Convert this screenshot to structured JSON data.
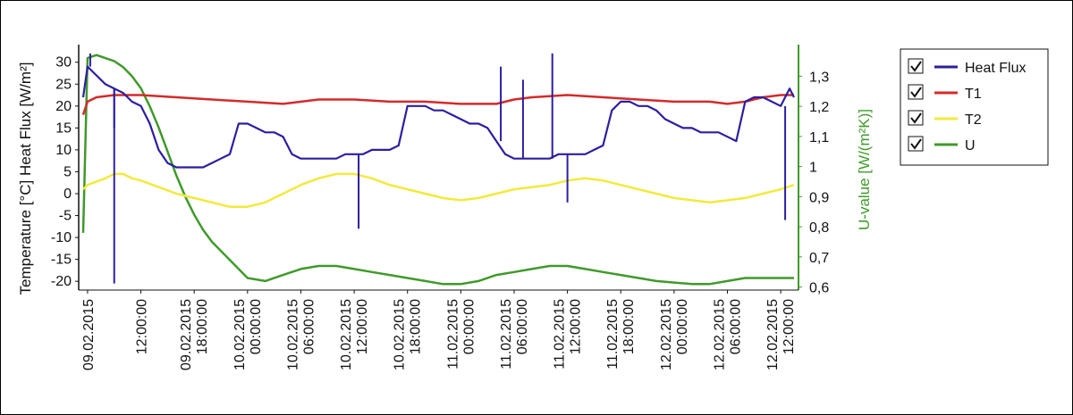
{
  "chart_data": {
    "type": "line",
    "y_left_label": "Temperature [°C] Heat Flux [W/m²]",
    "y_right_label": "U-value [W/(m²K)]",
    "y_left_ticks": [
      "30",
      "25",
      "20",
      "15",
      "10",
      "5",
      "0",
      "-5",
      "-10",
      "-15",
      "-20"
    ],
    "y_left_lim": [
      -22,
      33
    ],
    "y_right_ticks": [
      "1,3",
      "1,2",
      "1,1",
      "1",
      "0,9",
      "0,8",
      "0,7",
      "0,6"
    ],
    "y_right_lim": [
      0.59,
      1.39
    ],
    "x_ticks": [
      [
        "09.02.2015",
        ""
      ],
      [
        "12:00:00",
        ""
      ],
      [
        "09.02.2015",
        "18:00:00"
      ],
      [
        "10.02.2015",
        "00:00:00"
      ],
      [
        "10.02.2015",
        "06:00:00"
      ],
      [
        "10.02.2015",
        "12:00:00"
      ],
      [
        "10.02.2015",
        "18:00:00"
      ],
      [
        "11.02.2015",
        "00:00:00"
      ],
      [
        "11.02.2015",
        "06:00:00"
      ],
      [
        "11.02.2015",
        "12:00:00"
      ],
      [
        "11.02.2015",
        "18:00:00"
      ],
      [
        "12.02.2015",
        "00:00:00"
      ],
      [
        "12.02.2015",
        "06:00:00"
      ],
      [
        "12.02.2015",
        "12:00:00"
      ]
    ],
    "x_tick_labels": [
      "09.02.2015",
      "12:00:00",
      "09.02.2015 18:00:00",
      "10.02.2015 00:00:00",
      "10.02.2015 06:00:00",
      "10.02.2015 12:00:00",
      "10.02.2015 18:00:00",
      "11.02.2015 00:00:00",
      "11.02.2015 06:00:00",
      "11.02.2015 12:00:00",
      "11.02.2015 18:00:00",
      "12.02.2015 00:00:00",
      "12.02.2015 06:00:00",
      "12.02.2015 12:00:00"
    ],
    "x_hours_lim": [
      -1,
      80
    ],
    "x_tick_hours": [
      0,
      6,
      12,
      18,
      24,
      30,
      36,
      42,
      48,
      54,
      60,
      66,
      72,
      78
    ],
    "legend": {
      "placement": "right",
      "items": [
        {
          "label": "Heat Flux",
          "color": "#2b1fa0",
          "checked": true
        },
        {
          "label": "T1",
          "color": "#d42a2a",
          "checked": true
        },
        {
          "label": "T2",
          "color": "#f2ea3c",
          "checked": true
        },
        {
          "label": "U",
          "color": "#3f9a2a",
          "checked": true
        }
      ]
    },
    "series": [
      {
        "name": "Heat Flux",
        "axis": "left",
        "color": "#2b1fa0",
        "x": [
          -0.5,
          0,
          1,
          2,
          3,
          4,
          5,
          6,
          7,
          8,
          9,
          10,
          11,
          12,
          13,
          14,
          15,
          16,
          17,
          18,
          19,
          20,
          21,
          22,
          23,
          24,
          25,
          26,
          27,
          28,
          29,
          30,
          31,
          32,
          33,
          34,
          35,
          36,
          37,
          38,
          39,
          40,
          41,
          42,
          43,
          44,
          45,
          46,
          47,
          48,
          49,
          50,
          51,
          52,
          53,
          54,
          55,
          56,
          57,
          58,
          59,
          60,
          61,
          62,
          63,
          64,
          65,
          66,
          67,
          68,
          69,
          70,
          71,
          72,
          73,
          74,
          75,
          76,
          77,
          78,
          79,
          79.5
        ],
        "y": [
          22,
          29,
          27,
          25,
          24,
          23,
          21,
          20,
          16,
          10,
          7,
          6,
          6,
          6,
          6,
          7,
          8,
          9,
          16,
          16,
          15,
          14,
          14,
          13,
          9,
          8,
          8,
          8,
          8,
          8,
          9,
          9,
          9,
          10,
          10,
          10,
          11,
          20,
          20,
          20,
          19,
          19,
          18,
          17,
          16,
          16,
          15,
          12,
          9,
          8,
          8,
          8,
          8,
          8,
          9,
          9,
          9,
          9,
          10,
          11,
          19,
          21,
          21,
          20,
          20,
          19,
          17,
          16,
          15,
          15,
          14,
          14,
          14,
          13,
          12,
          21,
          22,
          22,
          21,
          20,
          24,
          22
        ],
        "spikes": [
          [
            3.0,
            -20.5
          ],
          [
            3.0,
            15
          ],
          [
            0.3,
            32
          ],
          [
            30.5,
            -8
          ],
          [
            54,
            -2
          ],
          [
            78.5,
            -6
          ],
          [
            52.3,
            32
          ],
          [
            46.5,
            29
          ],
          [
            49,
            26
          ]
        ]
      },
      {
        "name": "T1",
        "axis": "left",
        "color": "#d42a2a",
        "x": [
          -0.5,
          0,
          1,
          3,
          6,
          10,
          14,
          18,
          22,
          26,
          30,
          34,
          38,
          42,
          46,
          48,
          50,
          54,
          58,
          62,
          66,
          70,
          72,
          74,
          76,
          78,
          79.5
        ],
        "y": [
          18,
          21,
          22,
          22.5,
          22.5,
          22,
          21.5,
          21,
          20.5,
          21.5,
          21.5,
          21,
          21,
          20.5,
          20.5,
          21.5,
          22,
          22.5,
          22,
          21.5,
          21,
          21,
          20.5,
          21,
          22,
          22.5,
          22.5
        ]
      },
      {
        "name": "T2",
        "axis": "left",
        "color": "#f2ea3c",
        "x": [
          -0.5,
          0,
          2,
          3,
          4,
          5,
          6,
          8,
          10,
          12,
          14,
          16,
          18,
          20,
          22,
          24,
          26,
          28,
          30,
          32,
          34,
          36,
          38,
          40,
          42,
          44,
          46,
          48,
          50,
          52,
          54,
          56,
          58,
          60,
          62,
          64,
          66,
          68,
          70,
          72,
          74,
          76,
          78,
          79.5
        ],
        "y": [
          1,
          2,
          3.5,
          4.5,
          4.5,
          3.5,
          3,
          1.5,
          0,
          -1,
          -2,
          -3,
          -3,
          -2,
          0,
          2,
          3.5,
          4.5,
          4.5,
          3.5,
          2,
          1,
          0,
          -1,
          -1.5,
          -1,
          0,
          1,
          1.5,
          2,
          3,
          3.5,
          3,
          2,
          1,
          0,
          -1,
          -1.5,
          -2,
          -1.5,
          -1,
          0,
          1,
          2
        ]
      },
      {
        "name": "U",
        "axis": "right",
        "color": "#3f9a2a",
        "x": [
          -0.5,
          0,
          1,
          2,
          3,
          4,
          5,
          6,
          7,
          8,
          9,
          10,
          11,
          12,
          13,
          14,
          15,
          16,
          17,
          18,
          20,
          22,
          24,
          26,
          28,
          30,
          32,
          34,
          36,
          38,
          40,
          42,
          44,
          46,
          48,
          50,
          52,
          54,
          56,
          58,
          60,
          62,
          64,
          66,
          68,
          70,
          72,
          74,
          76,
          78,
          79.5
        ],
        "y": [
          0.78,
          1.36,
          1.37,
          1.36,
          1.35,
          1.33,
          1.3,
          1.26,
          1.2,
          1.13,
          1.05,
          0.97,
          0.9,
          0.84,
          0.79,
          0.75,
          0.72,
          0.69,
          0.66,
          0.63,
          0.62,
          0.64,
          0.66,
          0.67,
          0.67,
          0.66,
          0.65,
          0.64,
          0.63,
          0.62,
          0.61,
          0.61,
          0.62,
          0.64,
          0.65,
          0.66,
          0.67,
          0.67,
          0.66,
          0.65,
          0.64,
          0.63,
          0.62,
          0.615,
          0.61,
          0.61,
          0.62,
          0.63,
          0.63,
          0.63,
          0.63
        ]
      }
    ]
  }
}
